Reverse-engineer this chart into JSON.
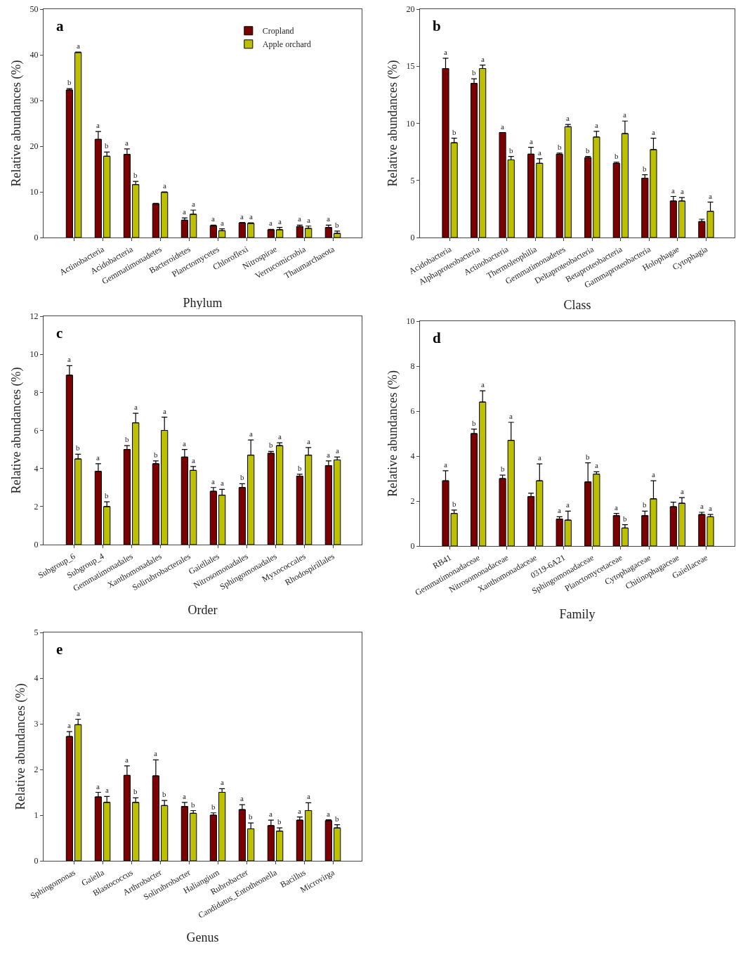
{
  "chart_data": [
    {
      "type": "bar",
      "title": "a",
      "xlabel": "Phylum",
      "ylabel": "Relative abundances (%)",
      "categories": [
        null,
        "Actinobacteria",
        "Acidobacteria",
        "Gemmatimonadetes",
        "Bacteroidetes",
        "Planctomycetes",
        "Chloroflexi",
        "Nitrospirae",
        "Verrucomicrobia",
        "Thaumarchaeota"
      ],
      "series": [
        {
          "name": "Cropland",
          "color": "#7b0000",
          "values": [
            32.3,
            21.5,
            18.2,
            7.4,
            3.8,
            2.6,
            3.2,
            1.7,
            2.4,
            2.2
          ],
          "errors": [
            [
              32.3,
              32.6
            ],
            [
              21.5,
              23.2
            ],
            [
              18.2,
              19.4
            ],
            [
              7.4,
              7.5
            ],
            [
              3.8,
              4.3
            ],
            [
              2.6,
              2.7
            ],
            [
              3.2,
              3.3
            ],
            [
              1.7,
              1.8
            ],
            [
              2.4,
              2.7
            ],
            [
              2.2,
              2.7
            ]
          ],
          "value_labels": [
            "b",
            "a",
            "a",
            null,
            "a",
            "a",
            "a",
            "a",
            "a",
            "a"
          ]
        },
        {
          "name": "Apple orchard",
          "color": "#bcc000",
          "values": [
            40.5,
            17.8,
            11.6,
            9.9,
            5.1,
            1.5,
            3.1,
            1.7,
            2.0,
            0.9
          ],
          "errors": [
            [
              40.5,
              40.6
            ],
            [
              17.8,
              18.7
            ],
            [
              11.6,
              12.3
            ],
            [
              9.9,
              10.0
            ],
            [
              5.1,
              6.0
            ],
            [
              1.5,
              1.9
            ],
            [
              3.1,
              3.2
            ],
            [
              1.7,
              2.2
            ],
            [
              2.0,
              2.5
            ],
            [
              0.9,
              1.4
            ]
          ],
          "value_labels": [
            "a",
            "b",
            "b",
            "a",
            "a",
            "a",
            "a",
            "a",
            "a",
            "b"
          ]
        }
      ],
      "ylim": [
        0,
        50
      ],
      "yticks": [
        0,
        10,
        20,
        30,
        40,
        50
      ],
      "legend": "top right"
    },
    {
      "type": "bar",
      "title": "b",
      "xlabel": "Class",
      "ylabel": "Relative abundances (%)",
      "categories": [
        "Acidobacteria",
        "Alphaproteobacteria",
        "Actinobacteria",
        "Thermoleophilia",
        "Gemmatimonadetes",
        "Deltaproteobacteria",
        "Betaproteobacteria",
        "Gammaproteobacteria",
        "Holophagae",
        "Cytophagia"
      ],
      "series": [
        {
          "color": "#7b0000",
          "values": [
            14.8,
            13.5,
            9.2,
            7.3,
            7.3,
            7.0,
            6.5,
            5.2,
            3.2,
            1.4
          ],
          "errors": [
            [
              14.8,
              15.7
            ],
            [
              13.5,
              13.9
            ],
            [
              9.2,
              9.2
            ],
            [
              7.3,
              7.9
            ],
            [
              7.3,
              7.4
            ],
            [
              7.0,
              7.1
            ],
            [
              6.5,
              6.6
            ],
            [
              5.2,
              5.5
            ],
            [
              3.2,
              3.6
            ],
            [
              1.4,
              1.6
            ]
          ],
          "value_labels": [
            "a",
            "b",
            "a",
            "a",
            "b",
            "b",
            "b",
            "b",
            "a",
            null
          ]
        },
        {
          "color": "#bcc000",
          "values": [
            8.3,
            14.8,
            6.8,
            6.5,
            9.7,
            8.8,
            9.1,
            7.7,
            3.2,
            2.3
          ],
          "errors": [
            [
              8.3,
              8.7
            ],
            [
              14.8,
              15.1
            ],
            [
              6.8,
              7.1
            ],
            [
              6.5,
              6.9
            ],
            [
              9.7,
              9.9
            ],
            [
              8.8,
              9.3
            ],
            [
              9.1,
              10.2
            ],
            [
              7.7,
              8.7
            ],
            [
              3.2,
              3.5
            ],
            [
              2.3,
              3.1
            ]
          ],
          "value_labels": [
            "b",
            "a",
            "b",
            "a",
            "a",
            "a",
            "a",
            "a",
            "a",
            "a"
          ]
        }
      ],
      "ylim": [
        0,
        20
      ],
      "yticks": [
        0,
        5,
        10,
        15,
        20
      ]
    },
    {
      "type": "bar",
      "title": "c",
      "xlabel": "Order",
      "ylabel": "Relative abundances (%)",
      "categories": [
        "Subgroup_6",
        "Subgroup_4",
        "Gemmatimonadales",
        "Xanthomonadales",
        "Solirubrobacterales",
        "Gaiellales",
        "Nitrosomonadales",
        "Sphingomonadales",
        "Myxococcales",
        "Rhodospirillales"
      ],
      "series": [
        {
          "color": "#7b0000",
          "values": [
            8.9,
            3.85,
            5.0,
            4.25,
            4.6,
            2.8,
            3.0,
            4.8,
            3.6,
            4.15
          ],
          "errors": [
            [
              8.9,
              9.4
            ],
            [
              3.85,
              4.25
            ],
            [
              5.0,
              5.2
            ],
            [
              4.25,
              4.4
            ],
            [
              4.6,
              5.0
            ],
            [
              2.8,
              3.0
            ],
            [
              3.0,
              3.2
            ],
            [
              4.8,
              4.9
            ],
            [
              3.6,
              3.7
            ],
            [
              4.15,
              4.4
            ]
          ],
          "value_labels": [
            "a",
            "a",
            "b",
            "b",
            "a",
            "a",
            "b",
            "b",
            "b",
            "a"
          ]
        },
        {
          "color": "#bcc000",
          "values": [
            4.5,
            2.0,
            6.4,
            6.0,
            3.9,
            2.6,
            4.7,
            5.2,
            4.7,
            4.45
          ],
          "errors": [
            [
              4.5,
              4.75
            ],
            [
              2.0,
              2.25
            ],
            [
              6.4,
              6.9
            ],
            [
              6.0,
              6.7
            ],
            [
              3.9,
              4.1
            ],
            [
              2.6,
              2.9
            ],
            [
              4.7,
              5.5
            ],
            [
              5.2,
              5.35
            ],
            [
              4.7,
              5.1
            ],
            [
              4.45,
              4.6
            ]
          ],
          "value_labels": [
            "b",
            "b",
            "a",
            "a",
            "a",
            "a",
            "a",
            "a",
            "a",
            "a"
          ]
        }
      ],
      "ylim": [
        0,
        12
      ],
      "yticks": [
        0,
        2,
        4,
        6,
        8,
        10,
        12
      ]
    },
    {
      "type": "bar",
      "title": "d",
      "xlabel": "Family",
      "ylabel": "Relative abundances (%)",
      "categories": [
        "RB41",
        "Gemmatimonadaceae",
        "Nitrosomonadaceae",
        "Xanthomonadaceae",
        "0319-6A21",
        "Sphingomonadaceae",
        "Planctomycetaceae",
        "Cytophagaceae",
        "Chitinophagaceae",
        "Gaiellaceae"
      ],
      "series": [
        {
          "color": "#7b0000",
          "values": [
            2.9,
            5.0,
            3.0,
            2.2,
            1.2,
            2.85,
            1.35,
            1.35,
            1.75,
            1.4
          ],
          "errors": [
            [
              2.9,
              3.35
            ],
            [
              5.0,
              5.2
            ],
            [
              3.0,
              3.15
            ],
            [
              2.2,
              2.35
            ],
            [
              1.2,
              1.3
            ],
            [
              2.85,
              3.7
            ],
            [
              1.35,
              1.45
            ],
            [
              1.35,
              1.55
            ],
            [
              1.75,
              1.95
            ],
            [
              1.4,
              1.5
            ]
          ],
          "value_labels": [
            "a",
            "b",
            "b",
            null,
            "a",
            "b",
            "a",
            "b",
            null,
            "a"
          ]
        },
        {
          "color": "#bcc000",
          "values": [
            1.45,
            6.4,
            4.7,
            2.9,
            1.15,
            3.2,
            0.8,
            2.1,
            1.9,
            1.3
          ],
          "errors": [
            [
              1.45,
              1.6
            ],
            [
              6.4,
              6.9
            ],
            [
              4.7,
              5.5
            ],
            [
              2.9,
              3.65
            ],
            [
              1.15,
              1.55
            ],
            [
              3.2,
              3.3
            ],
            [
              0.8,
              0.95
            ],
            [
              2.1,
              2.9
            ],
            [
              1.9,
              2.15
            ],
            [
              1.3,
              1.4
            ]
          ],
          "value_labels": [
            "b",
            "a",
            "a",
            "a",
            "a",
            "a",
            "b",
            "a",
            "a",
            "a"
          ]
        }
      ],
      "ylim": [
        0,
        10
      ],
      "yticks": [
        0,
        2,
        4,
        6,
        8,
        10
      ]
    },
    {
      "type": "bar",
      "title": "e",
      "xlabel": "Genus",
      "ylabel": "Relative abundances (%)",
      "categories": [
        "Sphingomonas",
        "Gaiella",
        "Blastococcus",
        "Arthrobacter",
        "Solirubrobacter",
        "Haliangium",
        "Rubrobacter",
        "Candidatus_Entotheonella",
        "Bacillus",
        "Microvirga"
      ],
      "series": [
        {
          "color": "#7b0000",
          "values": [
            2.72,
            1.4,
            1.87,
            1.86,
            1.19,
            1.0,
            1.12,
            0.77,
            0.89,
            0.88
          ],
          "errors": [
            [
              2.72,
              2.83
            ],
            [
              1.4,
              1.5
            ],
            [
              1.87,
              2.08
            ],
            [
              1.86,
              2.21
            ],
            [
              1.19,
              1.28
            ],
            [
              1.0,
              1.05
            ],
            [
              1.12,
              1.23
            ],
            [
              0.77,
              0.89
            ],
            [
              0.89,
              0.96
            ],
            [
              0.88,
              0.9
            ]
          ],
          "value_labels": [
            "a",
            "a",
            "a",
            "a",
            "a",
            "b",
            "a",
            "a",
            "a",
            "a"
          ]
        },
        {
          "color": "#bcc000",
          "values": [
            2.98,
            1.28,
            1.28,
            1.21,
            1.04,
            1.5,
            0.7,
            0.65,
            1.1,
            0.72
          ],
          "errors": [
            [
              2.98,
              3.1
            ],
            [
              1.28,
              1.41
            ],
            [
              1.28,
              1.38
            ],
            [
              1.21,
              1.32
            ],
            [
              1.04,
              1.1
            ],
            [
              1.5,
              1.58
            ],
            [
              0.7,
              0.83
            ],
            [
              0.65,
              0.72
            ],
            [
              1.1,
              1.27
            ],
            [
              0.72,
              0.79
            ]
          ],
          "value_labels": [
            "a",
            "a",
            "b",
            "b",
            "b",
            "a",
            "b",
            "b",
            "a",
            "b"
          ]
        }
      ],
      "ylim": [
        0,
        5
      ],
      "yticks": [
        0,
        1,
        2,
        3,
        4,
        5
      ]
    }
  ]
}
